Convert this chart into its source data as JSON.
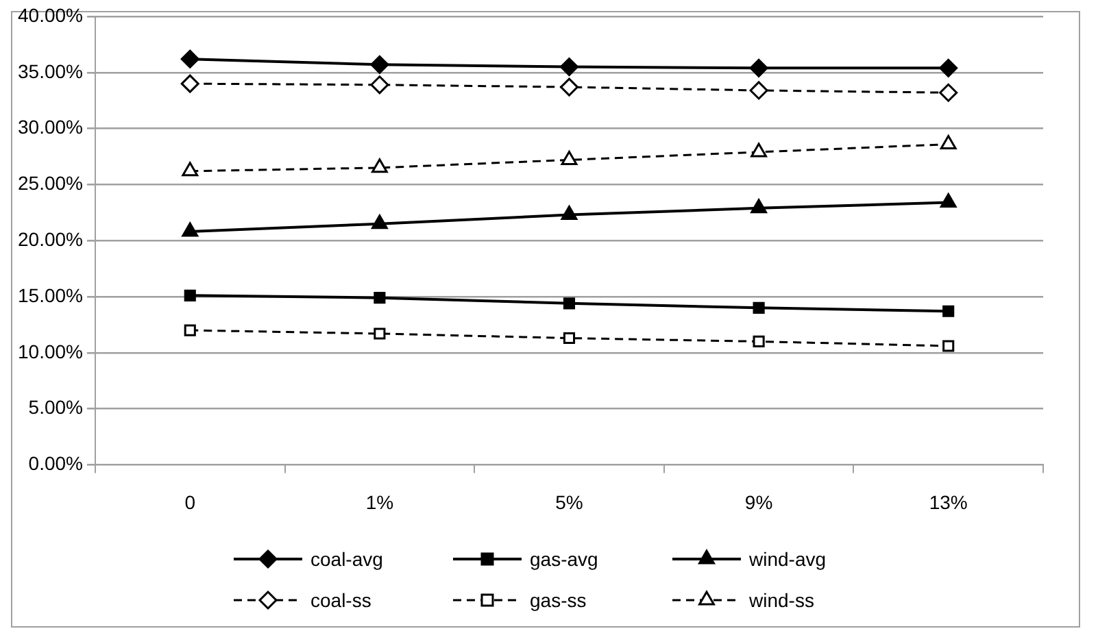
{
  "chart_data": {
    "type": "line",
    "categories": [
      "0",
      "1%",
      "5%",
      "9%",
      "13%"
    ],
    "series": [
      {
        "name": "coal-avg",
        "color": "#000000",
        "marker": "diamond",
        "line_style": "solid",
        "values": [
          0.362,
          0.357,
          0.355,
          0.354,
          0.354
        ]
      },
      {
        "name": "gas-avg",
        "color": "#000000",
        "marker": "square",
        "line_style": "solid",
        "values": [
          0.151,
          0.149,
          0.144,
          0.14,
          0.137
        ]
      },
      {
        "name": "wind-avg",
        "color": "#000000",
        "marker": "triangle",
        "line_style": "solid",
        "values": [
          0.208,
          0.215,
          0.223,
          0.229,
          0.234
        ]
      },
      {
        "name": "coal-ss",
        "color": "#000000",
        "marker": "diamond",
        "line_style": "dashed",
        "values": [
          0.34,
          0.339,
          0.337,
          0.334,
          0.332
        ]
      },
      {
        "name": "gas-ss",
        "color": "#000000",
        "marker": "square",
        "line_style": "dashed",
        "values": [
          0.12,
          0.117,
          0.113,
          0.11,
          0.106
        ]
      },
      {
        "name": "wind-ss",
        "color": "#000000",
        "marker": "triangle",
        "line_style": "dashed",
        "values": [
          0.262,
          0.265,
          0.272,
          0.279,
          0.286
        ]
      }
    ],
    "ylim": [
      0,
      0.4
    ],
    "yticks": [
      {
        "value": 0,
        "label": "0.00%"
      },
      {
        "value": 0.05,
        "label": "5.00%"
      },
      {
        "value": 0.1,
        "label": "10.00%"
      },
      {
        "value": 0.15,
        "label": "15.00%"
      },
      {
        "value": 0.2,
        "label": "20.00%"
      },
      {
        "value": 0.25,
        "label": "25.00%"
      },
      {
        "value": 0.3,
        "label": "30.00%"
      },
      {
        "value": 0.35,
        "label": "35.00%"
      },
      {
        "value": 0.4,
        "label": "40.00%"
      }
    ],
    "grid": "y",
    "legend": "bottom"
  }
}
